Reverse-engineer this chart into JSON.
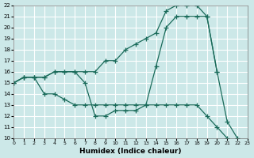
{
  "xlabel": "Humidex (Indice chaleur)",
  "bg_color": "#cce8e8",
  "grid_color": "#ffffff",
  "line_color": "#1a6b5a",
  "xlim": [
    0,
    23
  ],
  "ylim": [
    10,
    22
  ],
  "xticks": [
    0,
    1,
    2,
    3,
    4,
    5,
    6,
    7,
    8,
    9,
    10,
    11,
    12,
    13,
    14,
    15,
    16,
    17,
    18,
    19,
    20,
    21,
    22,
    23
  ],
  "yticks": [
    10,
    11,
    12,
    13,
    14,
    15,
    16,
    17,
    18,
    19,
    20,
    21,
    22
  ],
  "line1_x": [
    0,
    1,
    2,
    3,
    4,
    5,
    6,
    7,
    8,
    9,
    10,
    11,
    12,
    13,
    14,
    15,
    16,
    17,
    18,
    19,
    20,
    21,
    22
  ],
  "line1_y": [
    15,
    15.5,
    15.5,
    15.5,
    16,
    16,
    16,
    16,
    16,
    17,
    17,
    18,
    18.5,
    19,
    19.5,
    21.5,
    22,
    22,
    22,
    21,
    16,
    11.5,
    10
  ],
  "line2_x": [
    0,
    1,
    2,
    3,
    4,
    5,
    6,
    7,
    8,
    9,
    10,
    11,
    12,
    13,
    14,
    15,
    16,
    17,
    18,
    19,
    20,
    21
  ],
  "line2_y": [
    15,
    15.5,
    15.5,
    15.5,
    16,
    16,
    16,
    15,
    12,
    12,
    12.5,
    12.5,
    12.5,
    13,
    13,
    13,
    13,
    13,
    13,
    12,
    11,
    10
  ],
  "line3_x": [
    0,
    1,
    2,
    3,
    4,
    5,
    6,
    7,
    8,
    9,
    10,
    11,
    12,
    13,
    14,
    15,
    16,
    17,
    18,
    19,
    20
  ],
  "line3_y": [
    15,
    15.5,
    15.5,
    14,
    14,
    13.5,
    13,
    13,
    13,
    13,
    13,
    13,
    13,
    13,
    16.5,
    20,
    21,
    21,
    21,
    21,
    16
  ]
}
